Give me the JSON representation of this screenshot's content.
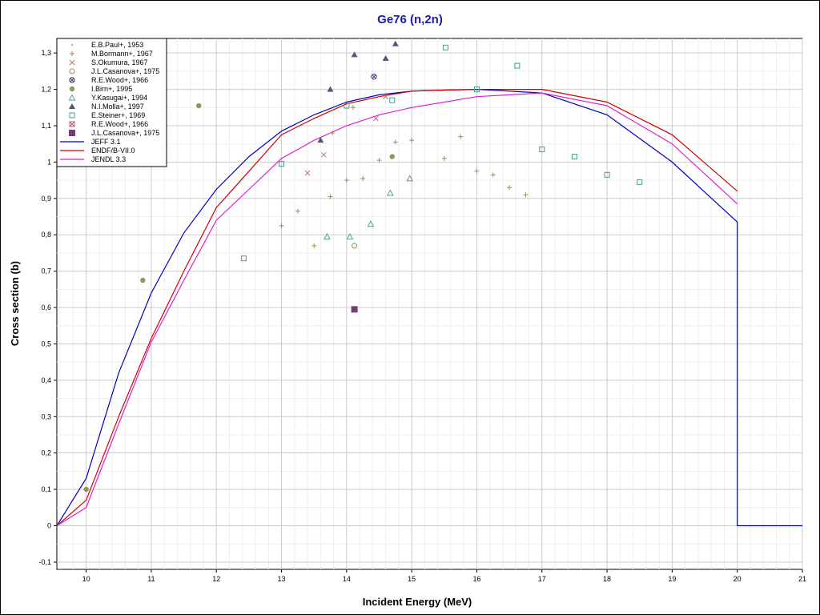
{
  "chart_data": {
    "type": "scatter",
    "title": "Ge76 (n,2n)",
    "xlabel": "Incident Energy (MeV)",
    "ylabel": "Cross section (b)",
    "xlim": [
      9.55,
      21
    ],
    "ylim": [
      -0.12,
      1.34
    ],
    "x_ticks": [
      10,
      11,
      12,
      13,
      14,
      15,
      16,
      17,
      18,
      19,
      20,
      21
    ],
    "y_ticks": [
      -0.1,
      0,
      0.1,
      0.2,
      0.3,
      0.4,
      0.5,
      0.6,
      0.7,
      0.8,
      0.9,
      1,
      1.1,
      1.2,
      1.3
    ],
    "y_tick_labels": [
      "-0,1",
      "0",
      "0,1",
      "0,2",
      "0,3",
      "0,4",
      "0,5",
      "0,6",
      "0,7",
      "0,8",
      "0,9",
      "1",
      "1,1",
      "1,2",
      "1,3"
    ],
    "grid": true,
    "legend_position": "top-left",
    "series": [
      {
        "name": "E.B.Paul+, 1953",
        "marker": "dot",
        "color": "#c08080",
        "points": []
      },
      {
        "name": "M.Bormann+, 1967",
        "marker": "plus",
        "color": "#a08a5a",
        "points": [
          [
            13.0,
            0.825
          ],
          [
            13.25,
            0.865
          ],
          [
            13.5,
            0.77
          ],
          [
            13.75,
            0.905
          ],
          [
            13.78,
            1.08
          ],
          [
            14.0,
            0.95
          ],
          [
            14.1,
            1.15
          ],
          [
            14.25,
            0.955
          ],
          [
            14.5,
            1.005
          ],
          [
            14.75,
            1.055
          ],
          [
            15.0,
            1.06
          ],
          [
            15.5,
            1.01
          ],
          [
            15.75,
            1.07
          ],
          [
            16.0,
            0.975
          ],
          [
            16.25,
            0.965
          ],
          [
            16.5,
            0.93
          ],
          [
            16.75,
            0.91
          ]
        ]
      },
      {
        "name": "S.Okumura, 1967",
        "marker": "x",
        "color": "#c07070",
        "points": [
          [
            13.4,
            0.97
          ],
          [
            13.65,
            1.02
          ],
          [
            14.45,
            1.12
          ],
          [
            14.6,
            1.18
          ]
        ]
      },
      {
        "name": "J.L.Casanova+, 1975",
        "marker": "circle-open",
        "color": "#a08a5a",
        "points": [
          [
            14.12,
            0.77
          ]
        ]
      },
      {
        "name": "R.E.Wood+, 1966",
        "marker": "circle-x",
        "color": "#3a3a6a",
        "points": [
          [
            14.42,
            1.235
          ]
        ]
      },
      {
        "name": "I.Birn+, 1995",
        "marker": "circle-filled",
        "color": "#8a9a5a",
        "points": [
          [
            10.0,
            0.1
          ],
          [
            10.87,
            0.675
          ],
          [
            11.73,
            1.155
          ],
          [
            14.7,
            1.015
          ]
        ]
      },
      {
        "name": "Y.Kasugai+, 1994",
        "marker": "triangle-open",
        "color": "#5aa090",
        "points": [
          [
            13.7,
            0.795
          ],
          [
            14.05,
            0.795
          ],
          [
            14.37,
            0.83
          ],
          [
            14.67,
            0.915
          ],
          [
            14.97,
            0.955
          ]
        ]
      },
      {
        "name": "N.I.Molla+, 1997",
        "marker": "triangle-filled",
        "color": "#4a5a7a",
        "points": [
          [
            13.6,
            1.06
          ],
          [
            13.75,
            1.2
          ],
          [
            14.12,
            1.295
          ],
          [
            14.6,
            1.285
          ],
          [
            14.75,
            1.325
          ]
        ]
      },
      {
        "name": "E.Steiner+, 1969",
        "marker": "square-open",
        "color": "#40a090",
        "points": [
          [
            12.42,
            0.735
          ],
          [
            13.0,
            0.995
          ],
          [
            14.0,
            1.155
          ],
          [
            14.7,
            1.17
          ],
          [
            15.52,
            1.315
          ],
          [
            16.0,
            1.2
          ],
          [
            16.62,
            1.265
          ],
          [
            17.0,
            1.035
          ],
          [
            17.5,
            1.015
          ],
          [
            18.0,
            0.965
          ],
          [
            18.5,
            0.945
          ]
        ]
      },
      {
        "name": "R.E.Wood+, 1966",
        "marker": "square-x",
        "color": "#b06080",
        "points": []
      },
      {
        "name": "J.L.Casanova+, 1975",
        "marker": "square-filled",
        "color": "#7a3a7a",
        "points": [
          [
            14.12,
            0.595
          ]
        ]
      },
      {
        "name": "JEFF 3.1",
        "marker": "line",
        "color": "#0000c0",
        "points": [
          [
            9.55,
            0.0
          ],
          [
            10.0,
            0.13
          ],
          [
            10.5,
            0.42
          ],
          [
            11.0,
            0.64
          ],
          [
            11.5,
            0.805
          ],
          [
            12.0,
            0.925
          ],
          [
            12.5,
            1.015
          ],
          [
            13.0,
            1.085
          ],
          [
            13.5,
            1.13
          ],
          [
            14.0,
            1.165
          ],
          [
            14.5,
            1.185
          ],
          [
            15.0,
            1.195
          ],
          [
            15.5,
            1.198
          ],
          [
            16.0,
            1.2
          ],
          [
            16.5,
            1.195
          ],
          [
            17.0,
            1.19
          ],
          [
            18.0,
            1.13
          ],
          [
            19.0,
            1.0
          ],
          [
            20.0,
            0.835
          ],
          [
            20.0,
            0.0
          ],
          [
            21.0,
            0.0
          ]
        ]
      },
      {
        "name": "ENDF/B-VII.0",
        "marker": "line",
        "color": "#d00000",
        "points": [
          [
            9.55,
            0.0
          ],
          [
            10.0,
            0.07
          ],
          [
            10.5,
            0.3
          ],
          [
            11.0,
            0.515
          ],
          [
            11.5,
            0.7
          ],
          [
            12.0,
            0.875
          ],
          [
            12.5,
            0.975
          ],
          [
            13.0,
            1.075
          ],
          [
            13.5,
            1.12
          ],
          [
            14.0,
            1.16
          ],
          [
            14.5,
            1.18
          ],
          [
            15.0,
            1.195
          ],
          [
            15.5,
            1.198
          ],
          [
            16.0,
            1.2
          ],
          [
            16.5,
            1.2
          ],
          [
            17.0,
            1.2
          ],
          [
            18.0,
            1.165
          ],
          [
            19.0,
            1.075
          ],
          [
            20.0,
            0.92
          ]
        ]
      },
      {
        "name": "JENDL 3.3",
        "marker": "line",
        "color": "#e020d0",
        "points": [
          [
            9.55,
            0.0
          ],
          [
            10.0,
            0.05
          ],
          [
            10.5,
            0.28
          ],
          [
            11.0,
            0.505
          ],
          [
            11.5,
            0.675
          ],
          [
            12.0,
            0.84
          ],
          [
            12.5,
            0.925
          ],
          [
            13.0,
            1.01
          ],
          [
            13.5,
            1.06
          ],
          [
            14.0,
            1.1
          ],
          [
            14.5,
            1.13
          ],
          [
            15.0,
            1.15
          ],
          [
            15.5,
            1.165
          ],
          [
            16.0,
            1.18
          ],
          [
            16.5,
            1.185
          ],
          [
            17.0,
            1.19
          ],
          [
            18.0,
            1.155
          ],
          [
            19.0,
            1.05
          ],
          [
            20.0,
            0.885
          ]
        ]
      }
    ]
  }
}
